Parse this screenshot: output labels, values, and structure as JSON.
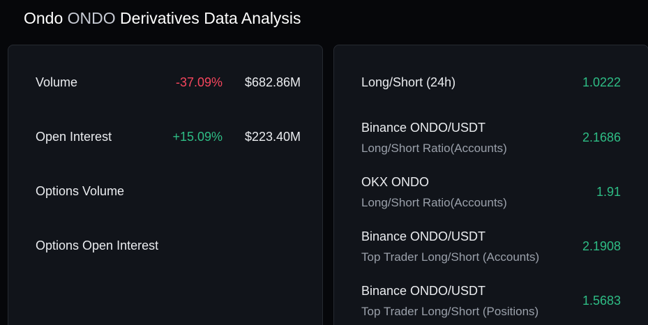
{
  "header": {
    "title_prefix": "Ondo",
    "title_symbol": "ONDO",
    "title_suffix": "Derivatives Data Analysis"
  },
  "left_panel": {
    "rows": [
      {
        "label": "Volume",
        "change": "-37.09%",
        "value": "$682.86M"
      },
      {
        "label": "Open Interest",
        "change": "+15.09%",
        "value": "$223.40M"
      },
      {
        "label": "Options Volume",
        "change": "",
        "value": ""
      },
      {
        "label": "Options Open Interest",
        "change": "",
        "value": ""
      }
    ]
  },
  "right_panel": {
    "rows": [
      {
        "title": "Long/Short (24h)",
        "subtitle": "",
        "value": "1.0222"
      },
      {
        "title": "Binance ONDO/USDT",
        "subtitle": "Long/Short Ratio(Accounts)",
        "value": "2.1686"
      },
      {
        "title": "OKX ONDO",
        "subtitle": "Long/Short Ratio(Accounts)",
        "value": "1.91"
      },
      {
        "title": "Binance ONDO/USDT",
        "subtitle": "Top Trader Long/Short (Accounts)",
        "value": "2.1908"
      },
      {
        "title": "Binance ONDO/USDT",
        "subtitle": "Top Trader Long/Short (Positions)",
        "value": "1.5683"
      }
    ]
  },
  "colors": {
    "background": "#06070a",
    "card": "#11141a",
    "negative": "#f6465d",
    "positive": "#2ebd85"
  }
}
